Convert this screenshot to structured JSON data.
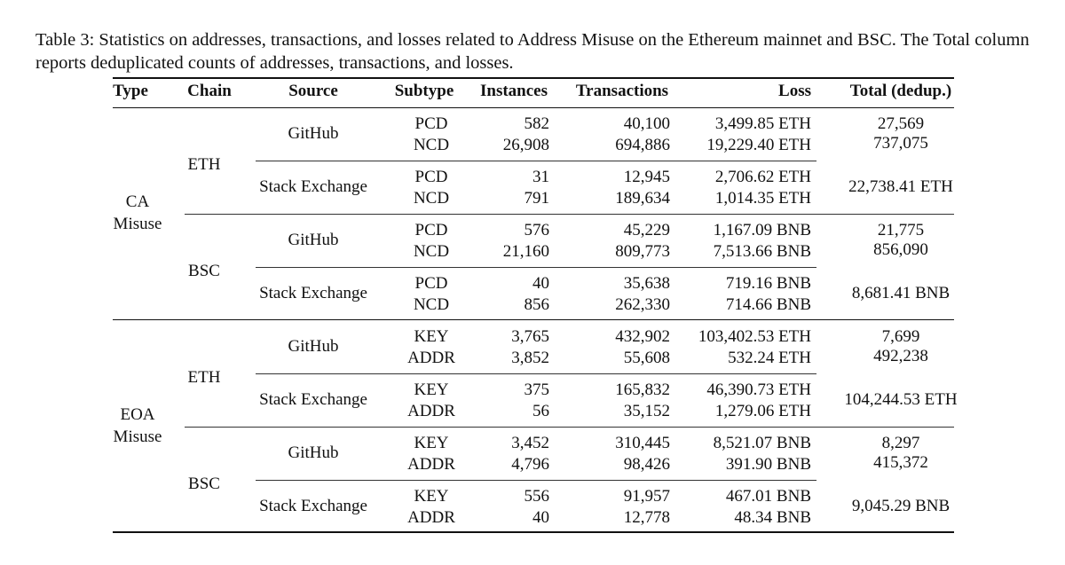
{
  "caption": "Table 3: Statistics on addresses, transactions, and losses related to Address Misuse on the Ethereum mainnet and BSC. The Total column reports deduplicated counts of addresses, transactions, and losses.",
  "headers": [
    "Type",
    "Chain",
    "Source",
    "Subtype",
    "Instances",
    "Transactions",
    "Loss",
    "Total (dedup.)"
  ],
  "types": [
    {
      "label": [
        "CA",
        "Misuse"
      ]
    },
    {
      "label": [
        "EOA",
        "Misuse"
      ]
    }
  ],
  "chains": [
    "ETH",
    "BSC",
    "ETH",
    "BSC"
  ],
  "blocks": [
    {
      "source": "GitHub",
      "rows": [
        [
          "PCD",
          "582",
          "40,100",
          "3,499.85 ETH"
        ],
        [
          "NCD",
          "26,908",
          "694,886",
          "19,229.40 ETH"
        ]
      ]
    },
    {
      "source": "Stack Exchange",
      "rows": [
        [
          "PCD",
          "31",
          "12,945",
          "2,706.62 ETH"
        ],
        [
          "NCD",
          "791",
          "189,634",
          "1,014.35 ETH"
        ]
      ]
    },
    {
      "source": "GitHub",
      "rows": [
        [
          "PCD",
          "576",
          "45,229",
          "1,167.09 BNB"
        ],
        [
          "NCD",
          "21,160",
          "809,773",
          "7,513.66 BNB"
        ]
      ]
    },
    {
      "source": "Stack Exchange",
      "rows": [
        [
          "PCD",
          "40",
          "35,638",
          "719.16 BNB"
        ],
        [
          "NCD",
          "856",
          "262,330",
          "714.66 BNB"
        ]
      ]
    },
    {
      "source": "GitHub",
      "rows": [
        [
          "KEY",
          "3,765",
          "432,902",
          "103,402.53 ETH"
        ],
        [
          "ADDR",
          "3,852",
          "55,608",
          "532.24 ETH"
        ]
      ]
    },
    {
      "source": "Stack Exchange",
      "rows": [
        [
          "KEY",
          "375",
          "165,832",
          "46,390.73 ETH"
        ],
        [
          "ADDR",
          "56",
          "35,152",
          "1,279.06 ETH"
        ]
      ]
    },
    {
      "source": "GitHub",
      "rows": [
        [
          "KEY",
          "3,452",
          "310,445",
          "8,521.07 BNB"
        ],
        [
          "ADDR",
          "4,796",
          "98,426",
          "391.90 BNB"
        ]
      ]
    },
    {
      "source": "Stack Exchange",
      "rows": [
        [
          "KEY",
          "556",
          "91,957",
          "467.01 BNB"
        ],
        [
          "ADDR",
          "40",
          "12,778",
          "48.34 BNB"
        ]
      ]
    }
  ],
  "totals": [
    {
      "lines": [
        "27,569",
        "737,075"
      ]
    },
    {
      "lines": [
        "22,738.41 ETH"
      ]
    },
    {
      "lines": [
        "21,775",
        "856,090"
      ]
    },
    {
      "lines": [
        "8,681.41 BNB"
      ]
    },
    {
      "lines": [
        "7,699",
        "492,238"
      ]
    },
    {
      "lines": [
        "104,244.53 ETH"
      ]
    },
    {
      "lines": [
        "8,297",
        "415,372"
      ]
    },
    {
      "lines": [
        "9,045.29 BNB"
      ]
    }
  ]
}
